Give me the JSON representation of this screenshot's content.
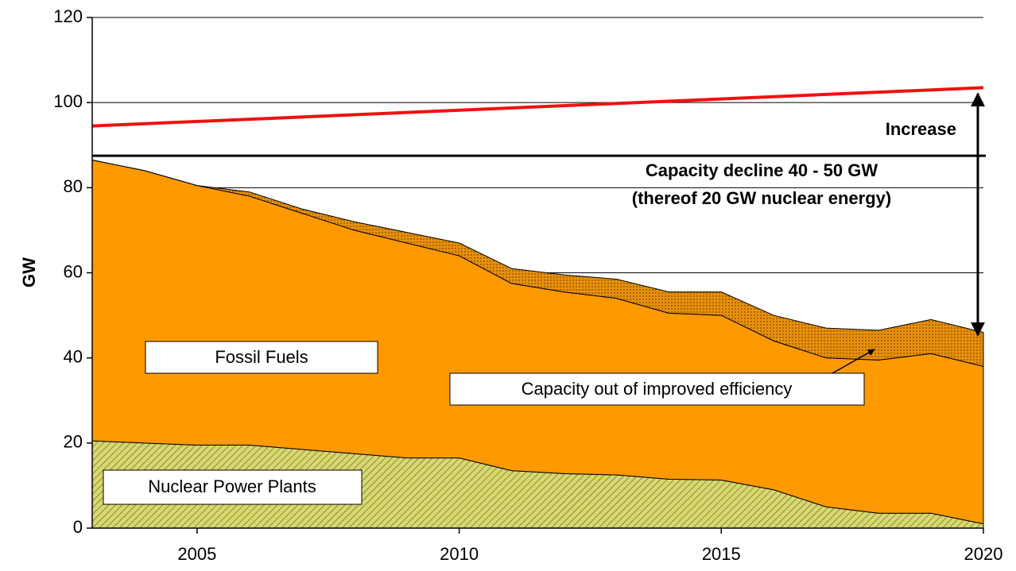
{
  "chart_data": {
    "type": "stacked_area",
    "ylabel": "GW",
    "x": [
      2003,
      2004,
      2005,
      2006,
      2007,
      2008,
      2009,
      2010,
      2011,
      2012,
      2013,
      2014,
      2015,
      2016,
      2017,
      2018,
      2019,
      2020
    ],
    "xlim": [
      2003,
      2020
    ],
    "xticks": [
      2005,
      2010,
      2015,
      2020
    ],
    "ylim": [
      0,
      120
    ],
    "yticks": [
      0,
      20,
      40,
      60,
      80,
      100,
      120
    ],
    "grid": true,
    "series": [
      {
        "name": "Nuclear Power Plants",
        "color": "#d8d870",
        "values": [
          20.5,
          20,
          19.5,
          19.5,
          18.5,
          17.5,
          16.5,
          16.5,
          13.5,
          12.8,
          12.5,
          11.5,
          11.3,
          9,
          5,
          3.5,
          3.5,
          1
        ]
      },
      {
        "name": "Fossil Fuels",
        "color": "#ff9900",
        "values": [
          66,
          64,
          61,
          58.5,
          55.5,
          52.5,
          50.5,
          47.5,
          44,
          42.7,
          41.5,
          39,
          38.7,
          35,
          35,
          36,
          37.5,
          37
        ]
      },
      {
        "name": "Capacity out of improved efficiency",
        "color": "#e8900a",
        "values": [
          0,
          0,
          0,
          1,
          1,
          2,
          2.5,
          3,
          3.5,
          4,
          4.5,
          5,
          5.5,
          6,
          7,
          7,
          8,
          8
        ]
      }
    ],
    "demand_line": {
      "color": "#ee1111",
      "x": [
        2003,
        2020
      ],
      "values": [
        94.5,
        103.5
      ]
    },
    "reference_line": {
      "color": "#000000",
      "value": 87.5
    },
    "annotations": [
      "Increase",
      "Capacity decline 40 - 50 GW",
      "(thereof 20 GW nuclear energy)"
    ]
  }
}
